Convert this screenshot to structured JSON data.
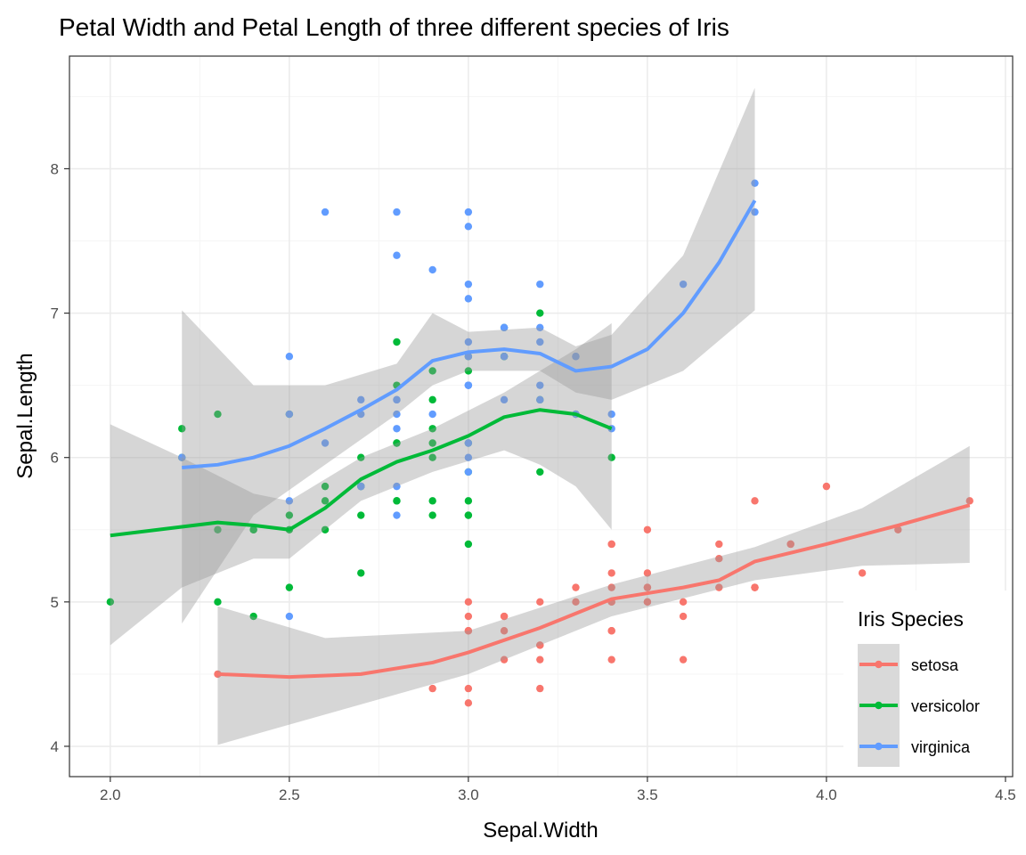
{
  "chart_data": {
    "type": "scatter",
    "title": "Petal Width and Petal Length of three different species of Iris",
    "xlabel": "Sepal.Width",
    "ylabel": "Sepal.Length",
    "xlim": [
      1.886,
      4.52
    ],
    "ylim": [
      3.79,
      8.78
    ],
    "x_ticks": [
      2.0,
      2.5,
      3.0,
      3.5,
      4.0,
      4.5
    ],
    "x_tick_labels": [
      "2.0",
      "2.5",
      "3.0",
      "3.5",
      "4.0",
      "4.5"
    ],
    "y_ticks": [
      4,
      5,
      6,
      7,
      8
    ],
    "y_tick_labels": [
      "4",
      "5",
      "6",
      "7",
      "8"
    ],
    "grid": true,
    "legend": {
      "title": "Iris Species",
      "placement": "bottom-right"
    },
    "series": [
      {
        "name": "setosa",
        "color": "#F8766D",
        "points": [
          [
            3.5,
            5.1
          ],
          [
            3.0,
            4.9
          ],
          [
            3.2,
            4.7
          ],
          [
            3.1,
            4.6
          ],
          [
            3.6,
            5.0
          ],
          [
            3.9,
            5.4
          ],
          [
            3.4,
            4.6
          ],
          [
            3.4,
            5.0
          ],
          [
            2.9,
            4.4
          ],
          [
            3.1,
            4.9
          ],
          [
            3.7,
            5.4
          ],
          [
            3.4,
            4.8
          ],
          [
            3.0,
            4.8
          ],
          [
            3.0,
            4.3
          ],
          [
            4.0,
            5.8
          ],
          [
            4.4,
            5.7
          ],
          [
            3.9,
            5.4
          ],
          [
            3.5,
            5.1
          ],
          [
            3.8,
            5.7
          ],
          [
            3.8,
            5.1
          ],
          [
            3.4,
            5.4
          ],
          [
            3.7,
            5.1
          ],
          [
            3.6,
            4.6
          ],
          [
            3.3,
            5.1
          ],
          [
            3.4,
            4.8
          ],
          [
            3.0,
            5.0
          ],
          [
            3.4,
            5.0
          ],
          [
            3.5,
            5.2
          ],
          [
            3.4,
            5.2
          ],
          [
            3.2,
            4.7
          ],
          [
            3.1,
            4.8
          ],
          [
            3.4,
            5.4
          ],
          [
            4.1,
            5.2
          ],
          [
            4.2,
            5.5
          ],
          [
            3.1,
            4.9
          ],
          [
            3.2,
            5.0
          ],
          [
            3.5,
            5.5
          ],
          [
            3.6,
            4.9
          ],
          [
            3.0,
            4.4
          ],
          [
            3.4,
            5.1
          ],
          [
            3.5,
            5.0
          ],
          [
            2.3,
            4.5
          ],
          [
            3.2,
            4.4
          ],
          [
            3.5,
            5.0
          ],
          [
            3.8,
            5.1
          ],
          [
            3.0,
            4.8
          ],
          [
            3.8,
            5.1
          ],
          [
            3.2,
            4.6
          ],
          [
            3.7,
            5.3
          ],
          [
            3.3,
            5.0
          ]
        ],
        "smooth": [
          [
            2.3,
            4.5
          ],
          [
            2.5,
            4.48
          ],
          [
            2.7,
            4.5
          ],
          [
            2.9,
            4.58
          ],
          [
            3.0,
            4.65
          ],
          [
            3.2,
            4.82
          ],
          [
            3.4,
            5.02
          ],
          [
            3.6,
            5.1
          ],
          [
            3.7,
            5.15
          ],
          [
            3.8,
            5.28
          ],
          [
            4.0,
            5.4
          ],
          [
            4.2,
            5.53
          ],
          [
            4.4,
            5.67
          ]
        ],
        "band": [
          [
            2.3,
            4.01,
            4.97
          ],
          [
            2.6,
            4.22,
            4.75
          ],
          [
            3.0,
            4.5,
            4.8
          ],
          [
            3.4,
            4.9,
            5.12
          ],
          [
            3.8,
            5.15,
            5.38
          ],
          [
            4.1,
            5.25,
            5.65
          ],
          [
            4.4,
            5.27,
            6.08
          ]
        ]
      },
      {
        "name": "versicolor",
        "color": "#00BA38",
        "points": [
          [
            3.2,
            7.0
          ],
          [
            3.2,
            6.4
          ],
          [
            3.1,
            6.9
          ],
          [
            2.3,
            5.5
          ],
          [
            2.8,
            6.5
          ],
          [
            2.8,
            5.7
          ],
          [
            3.3,
            6.3
          ],
          [
            2.4,
            4.9
          ],
          [
            2.9,
            6.6
          ],
          [
            2.7,
            5.2
          ],
          [
            2.0,
            5.0
          ],
          [
            3.0,
            5.9
          ],
          [
            2.2,
            6.0
          ],
          [
            2.9,
            6.1
          ],
          [
            2.9,
            5.6
          ],
          [
            3.1,
            6.7
          ],
          [
            3.0,
            5.6
          ],
          [
            2.7,
            5.8
          ],
          [
            2.2,
            6.2
          ],
          [
            2.5,
            5.6
          ],
          [
            3.2,
            5.9
          ],
          [
            2.8,
            6.1
          ],
          [
            2.5,
            6.3
          ],
          [
            2.8,
            6.1
          ],
          [
            2.9,
            6.4
          ],
          [
            3.0,
            6.6
          ],
          [
            2.8,
            6.8
          ],
          [
            3.0,
            6.7
          ],
          [
            2.9,
            6.0
          ],
          [
            2.6,
            5.7
          ],
          [
            2.4,
            5.5
          ],
          [
            2.4,
            5.5
          ],
          [
            2.7,
            5.8
          ],
          [
            2.7,
            6.0
          ],
          [
            3.0,
            5.4
          ],
          [
            3.4,
            6.0
          ],
          [
            3.1,
            6.7
          ],
          [
            2.3,
            6.3
          ],
          [
            3.0,
            5.6
          ],
          [
            2.5,
            5.5
          ],
          [
            2.6,
            5.5
          ],
          [
            3.0,
            6.1
          ],
          [
            2.6,
            5.8
          ],
          [
            2.3,
            5.0
          ],
          [
            2.7,
            5.6
          ],
          [
            3.0,
            5.7
          ],
          [
            2.9,
            5.7
          ],
          [
            2.9,
            6.2
          ],
          [
            2.5,
            5.1
          ],
          [
            2.8,
            5.7
          ]
        ],
        "smooth": [
          [
            2.0,
            5.46
          ],
          [
            2.2,
            5.52
          ],
          [
            2.3,
            5.55
          ],
          [
            2.4,
            5.53
          ],
          [
            2.5,
            5.5
          ],
          [
            2.6,
            5.65
          ],
          [
            2.7,
            5.85
          ],
          [
            2.8,
            5.97
          ],
          [
            2.9,
            6.05
          ],
          [
            3.0,
            6.15
          ],
          [
            3.1,
            6.28
          ],
          [
            3.2,
            6.33
          ],
          [
            3.3,
            6.3
          ],
          [
            3.4,
            6.2
          ]
        ],
        "band": [
          [
            2.0,
            4.7,
            6.23
          ],
          [
            2.2,
            5.1,
            6.0
          ],
          [
            2.4,
            5.3,
            5.75
          ],
          [
            2.5,
            5.3,
            5.7
          ],
          [
            2.7,
            5.7,
            6.0
          ],
          [
            2.9,
            5.9,
            6.2
          ],
          [
            3.1,
            6.05,
            6.45
          ],
          [
            3.2,
            5.95,
            6.6
          ],
          [
            3.3,
            5.8,
            6.75
          ],
          [
            3.4,
            5.5,
            6.93
          ]
        ]
      },
      {
        "name": "virginica",
        "color": "#619CFF",
        "points": [
          [
            3.3,
            6.3
          ],
          [
            2.7,
            5.8
          ],
          [
            3.0,
            7.1
          ],
          [
            2.9,
            6.3
          ],
          [
            3.0,
            6.5
          ],
          [
            3.0,
            7.6
          ],
          [
            2.5,
            4.9
          ],
          [
            2.9,
            7.3
          ],
          [
            2.5,
            6.7
          ],
          [
            3.6,
            7.2
          ],
          [
            3.2,
            6.5
          ],
          [
            2.7,
            6.4
          ],
          [
            3.0,
            6.8
          ],
          [
            2.5,
            5.7
          ],
          [
            2.8,
            5.8
          ],
          [
            3.2,
            6.4
          ],
          [
            3.0,
            6.5
          ],
          [
            3.8,
            7.7
          ],
          [
            2.6,
            7.7
          ],
          [
            2.2,
            6.0
          ],
          [
            3.2,
            6.9
          ],
          [
            2.8,
            5.6
          ],
          [
            2.8,
            7.7
          ],
          [
            2.7,
            6.3
          ],
          [
            3.3,
            6.7
          ],
          [
            3.2,
            7.2
          ],
          [
            2.8,
            6.2
          ],
          [
            3.0,
            6.1
          ],
          [
            2.8,
            6.4
          ],
          [
            3.0,
            7.2
          ],
          [
            2.8,
            7.4
          ],
          [
            3.8,
            7.9
          ],
          [
            2.8,
            6.4
          ],
          [
            2.8,
            6.3
          ],
          [
            2.6,
            6.1
          ],
          [
            3.0,
            7.7
          ],
          [
            3.4,
            6.3
          ],
          [
            3.1,
            6.4
          ],
          [
            3.0,
            6.0
          ],
          [
            3.1,
            6.9
          ],
          [
            3.1,
            6.7
          ],
          [
            3.1,
            6.9
          ],
          [
            2.7,
            5.8
          ],
          [
            3.2,
            6.8
          ],
          [
            3.3,
            6.7
          ],
          [
            3.0,
            6.7
          ],
          [
            2.5,
            6.3
          ],
          [
            3.0,
            6.5
          ],
          [
            3.4,
            6.2
          ],
          [
            3.0,
            5.9
          ]
        ],
        "smooth": [
          [
            2.2,
            5.93
          ],
          [
            2.3,
            5.95
          ],
          [
            2.4,
            6.0
          ],
          [
            2.5,
            6.08
          ],
          [
            2.6,
            6.2
          ],
          [
            2.7,
            6.33
          ],
          [
            2.8,
            6.47
          ],
          [
            2.9,
            6.67
          ],
          [
            3.0,
            6.73
          ],
          [
            3.1,
            6.75
          ],
          [
            3.2,
            6.72
          ],
          [
            3.3,
            6.6
          ],
          [
            3.4,
            6.63
          ],
          [
            3.5,
            6.75
          ],
          [
            3.6,
            7.0
          ],
          [
            3.7,
            7.35
          ],
          [
            3.8,
            7.78
          ]
        ],
        "band": [
          [
            2.2,
            4.85,
            7.02
          ],
          [
            2.4,
            5.6,
            6.5
          ],
          [
            2.6,
            5.95,
            6.5
          ],
          [
            2.8,
            6.3,
            6.65
          ],
          [
            2.9,
            6.5,
            7.0
          ],
          [
            3.0,
            6.6,
            6.87
          ],
          [
            3.2,
            6.6,
            6.9
          ],
          [
            3.3,
            6.45,
            6.77
          ],
          [
            3.4,
            6.4,
            6.85
          ],
          [
            3.6,
            6.6,
            7.4
          ],
          [
            3.8,
            7.02,
            8.56
          ]
        ]
      }
    ]
  },
  "colors": {
    "band": "#999999",
    "legend_key_bg": "#D9D9D9",
    "grid_major": "#EBEBEB",
    "grid_minor": "#F5F5F5"
  }
}
